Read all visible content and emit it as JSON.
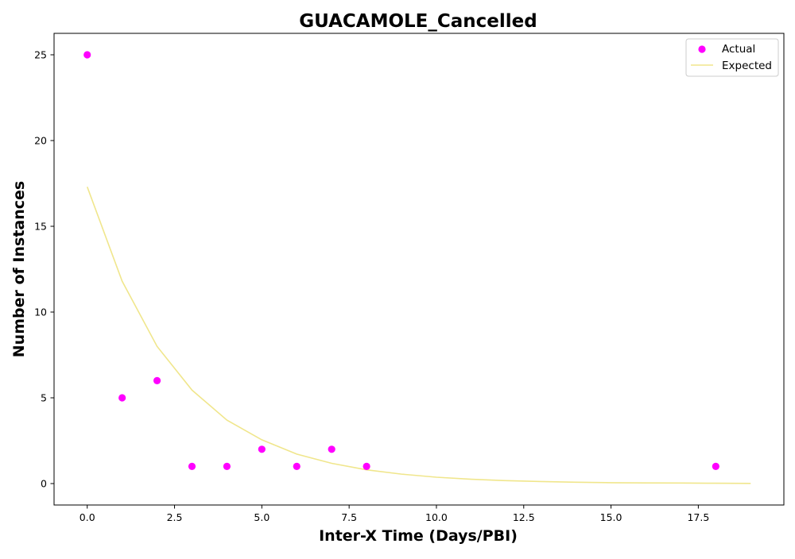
{
  "chart_data": {
    "type": "scatter",
    "title": "GUACAMOLE_Cancelled",
    "xlabel": "Inter-X Time (Days/PBI)",
    "ylabel": "Number of Instances",
    "xlim": [
      -0.95,
      19.95
    ],
    "ylim": [
      -1.25,
      26.25
    ],
    "x_ticks": [
      0.0,
      2.5,
      5.0,
      7.5,
      10.0,
      12.5,
      15.0,
      17.5
    ],
    "x_tick_labels": [
      "0.0",
      "2.5",
      "5.0",
      "7.5",
      "10.0",
      "12.5",
      "15.0",
      "17.5"
    ],
    "y_ticks": [
      0,
      5,
      10,
      15,
      20,
      25
    ],
    "y_tick_labels": [
      "0",
      "5",
      "10",
      "15",
      "20",
      "25"
    ],
    "grid": false,
    "legend_position": "top-right",
    "series": [
      {
        "name": "Actual",
        "kind": "scatter",
        "color": "#ff00ff",
        "x": [
          0,
          1,
          2,
          3,
          4,
          5,
          6,
          7,
          8,
          18
        ],
        "y": [
          25,
          5,
          6,
          1,
          1,
          2,
          1,
          2,
          1,
          1
        ]
      },
      {
        "name": "Expected",
        "kind": "line",
        "color": "#f0e68c",
        "x": [
          0,
          1,
          2,
          3,
          4,
          5,
          6,
          7,
          8,
          9,
          10,
          11,
          12,
          13,
          14,
          15,
          16,
          17,
          18,
          19
        ],
        "y": [
          17.3,
          11.8,
          8.0,
          5.45,
          3.7,
          2.55,
          1.72,
          1.18,
          0.8,
          0.55,
          0.37,
          0.25,
          0.17,
          0.12,
          0.08,
          0.05,
          0.04,
          0.03,
          0.02,
          0.01
        ]
      }
    ]
  }
}
